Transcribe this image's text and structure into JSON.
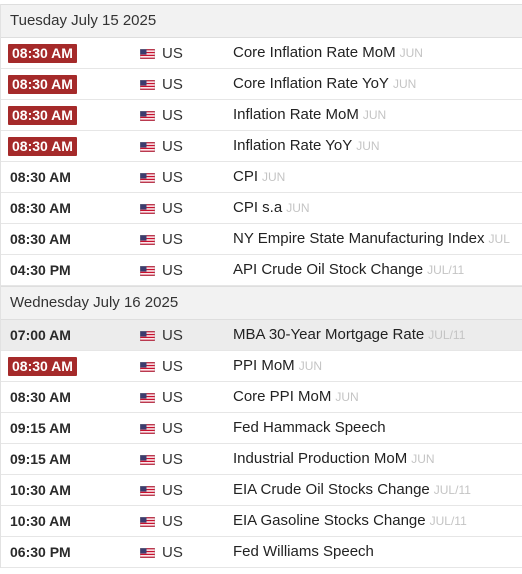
{
  "days": [
    {
      "date": "Tuesday July 15 2025",
      "events": [
        {
          "time": "08:30 AM",
          "badge": true,
          "country": "US",
          "name": "Core Inflation Rate MoM",
          "ref": "JUN"
        },
        {
          "time": "08:30 AM",
          "badge": true,
          "country": "US",
          "name": "Core Inflation Rate YoY",
          "ref": "JUN"
        },
        {
          "time": "08:30 AM",
          "badge": true,
          "country": "US",
          "name": "Inflation Rate MoM",
          "ref": "JUN"
        },
        {
          "time": "08:30 AM",
          "badge": true,
          "country": "US",
          "name": "Inflation Rate YoY",
          "ref": "JUN"
        },
        {
          "time": "08:30 AM",
          "badge": false,
          "country": "US",
          "name": "CPI",
          "ref": "JUN"
        },
        {
          "time": "08:30 AM",
          "badge": false,
          "country": "US",
          "name": "CPI s.a",
          "ref": "JUN"
        },
        {
          "time": "08:30 AM",
          "badge": false,
          "country": "US",
          "name": "NY Empire State Manufacturing Index",
          "ref": "JUL"
        },
        {
          "time": "04:30 PM",
          "badge": false,
          "country": "US",
          "name": "API Crude Oil Stock Change",
          "ref": "JUL/11"
        }
      ]
    },
    {
      "date": "Wednesday July 16 2025",
      "events": [
        {
          "time": "07:00 AM",
          "badge": false,
          "highlight": true,
          "country": "US",
          "name": "MBA 30-Year Mortgage Rate",
          "ref": "JUL/11"
        },
        {
          "time": "08:30 AM",
          "badge": true,
          "country": "US",
          "name": "PPI MoM",
          "ref": "JUN"
        },
        {
          "time": "08:30 AM",
          "badge": false,
          "country": "US",
          "name": "Core PPI MoM",
          "ref": "JUN"
        },
        {
          "time": "09:15 AM",
          "badge": false,
          "country": "US",
          "name": "Fed Hammack Speech",
          "ref": ""
        },
        {
          "time": "09:15 AM",
          "badge": false,
          "country": "US",
          "name": "Industrial Production MoM",
          "ref": "JUN"
        },
        {
          "time": "10:30 AM",
          "badge": false,
          "country": "US",
          "name": "EIA Crude Oil Stocks Change",
          "ref": "JUL/11"
        },
        {
          "time": "10:30 AM",
          "badge": false,
          "country": "US",
          "name": "EIA Gasoline Stocks Change",
          "ref": "JUL/11"
        },
        {
          "time": "06:30 PM",
          "badge": false,
          "country": "US",
          "name": "Fed Williams Speech",
          "ref": ""
        }
      ]
    }
  ],
  "colors": {
    "badge": "#a52a2a",
    "header_bg": "#f2f2f2",
    "highlight_bg": "#ececec",
    "ref_text": "#c4c4c4"
  },
  "icons": {
    "flag": "us-flag-icon"
  }
}
